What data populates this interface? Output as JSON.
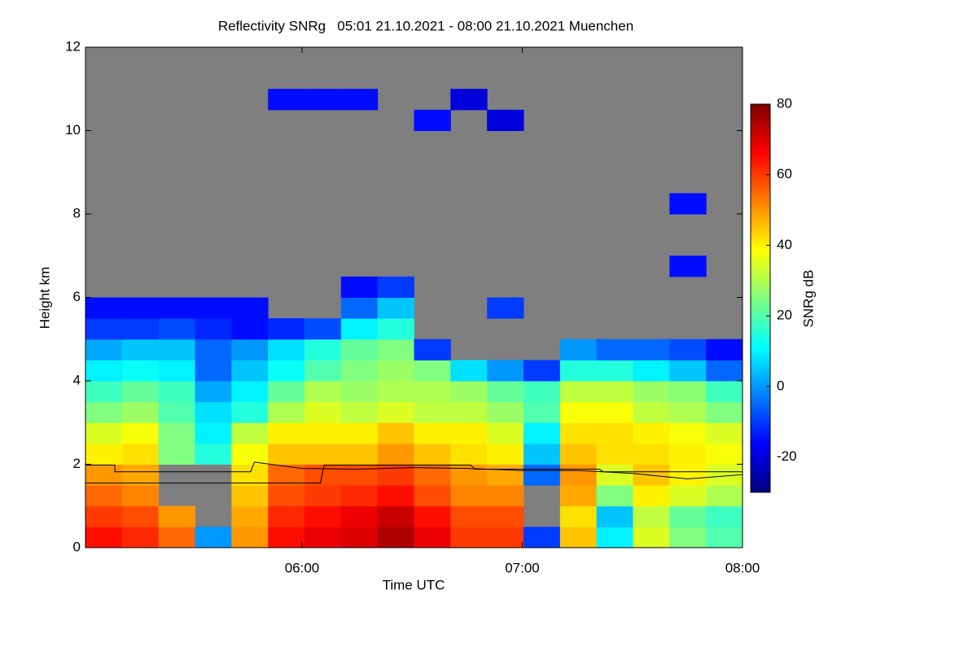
{
  "chart_data": {
    "type": "heatmap",
    "title": "Reflectivity SNRg   05:01 21.10.2021 - 08:00 21.10.2021 Muenchen",
    "x_label": "Time UTC",
    "y_label": "Height km",
    "colorbar_label": "SNRg dB",
    "colormap": "jet",
    "clim": [
      -30,
      80
    ],
    "cticks": [
      80,
      60,
      40,
      20,
      0,
      -20
    ],
    "xlim": [
      301,
      480
    ],
    "xticks": [
      {
        "value": 360,
        "label": "06:00"
      },
      {
        "value": 420,
        "label": "07:00"
      },
      {
        "value": 480,
        "label": "08:00"
      }
    ],
    "ylim": [
      0,
      12
    ],
    "yticks": [
      0,
      2,
      4,
      6,
      8,
      10,
      12
    ],
    "z": [
      [
        65,
        62,
        55,
        0,
        50,
        65,
        68,
        70,
        75,
        68,
        60,
        60,
        -10,
        45,
        10,
        35,
        25,
        20
      ],
      [
        60,
        58,
        50,
        null,
        48,
        62,
        65,
        68,
        72,
        65,
        58,
        58,
        null,
        42,
        5,
        32,
        22,
        18
      ],
      [
        55,
        52,
        null,
        null,
        45,
        58,
        60,
        62,
        65,
        58,
        52,
        52,
        null,
        48,
        25,
        40,
        35,
        30
      ],
      [
        50,
        48,
        null,
        null,
        42,
        55,
        58,
        58,
        60,
        55,
        50,
        48,
        -5,
        50,
        35,
        45,
        40,
        35
      ],
      [
        40,
        42,
        25,
        15,
        38,
        45,
        45,
        45,
        50,
        45,
        42,
        40,
        5,
        45,
        42,
        42,
        40,
        38
      ],
      [
        35,
        38,
        25,
        10,
        32,
        40,
        40,
        40,
        45,
        40,
        40,
        35,
        10,
        42,
        42,
        40,
        38,
        35
      ],
      [
        25,
        28,
        20,
        8,
        15,
        30,
        35,
        32,
        35,
        32,
        32,
        28,
        20,
        38,
        38,
        32,
        30,
        25
      ],
      [
        18,
        22,
        18,
        2,
        10,
        22,
        30,
        28,
        30,
        30,
        28,
        22,
        18,
        32,
        32,
        28,
        26,
        18
      ],
      [
        10,
        12,
        10,
        -5,
        5,
        12,
        20,
        25,
        28,
        25,
        8,
        0,
        -10,
        15,
        15,
        10,
        5,
        -5
      ],
      [
        2,
        5,
        5,
        -5,
        0,
        8,
        15,
        22,
        25,
        -10,
        null,
        null,
        null,
        0,
        -5,
        -5,
        -8,
        -15
      ],
      [
        -10,
        -10,
        -8,
        -12,
        -15,
        -12,
        -8,
        10,
        15,
        null,
        null,
        null,
        null,
        null,
        null,
        null,
        null,
        null
      ],
      [
        -15,
        -15,
        -15,
        -15,
        -15,
        null,
        null,
        -5,
        5,
        null,
        null,
        -10,
        null,
        null,
        null,
        null,
        null,
        null
      ],
      [
        null,
        null,
        null,
        null,
        null,
        null,
        null,
        -15,
        -10,
        null,
        null,
        null,
        null,
        null,
        null,
        null,
        null,
        null
      ],
      [
        null,
        null,
        null,
        null,
        null,
        null,
        null,
        null,
        null,
        null,
        null,
        null,
        null,
        null,
        null,
        null,
        -15,
        null
      ],
      [
        null,
        null,
        null,
        null,
        null,
        null,
        null,
        null,
        null,
        null,
        null,
        null,
        null,
        null,
        null,
        null,
        null,
        null
      ],
      [
        null,
        null,
        null,
        null,
        null,
        null,
        null,
        null,
        null,
        null,
        null,
        null,
        null,
        null,
        null,
        null,
        null,
        null
      ],
      [
        null,
        null,
        null,
        null,
        null,
        null,
        null,
        null,
        null,
        null,
        null,
        null,
        null,
        null,
        null,
        null,
        -15,
        null
      ],
      [
        null,
        null,
        null,
        null,
        null,
        null,
        null,
        null,
        null,
        null,
        null,
        null,
        null,
        null,
        null,
        null,
        null,
        null
      ],
      [
        null,
        null,
        null,
        null,
        null,
        null,
        null,
        null,
        null,
        null,
        null,
        null,
        null,
        null,
        null,
        null,
        null,
        null
      ],
      [
        null,
        null,
        null,
        null,
        null,
        null,
        null,
        null,
        null,
        null,
        null,
        null,
        null,
        null,
        null,
        null,
        null,
        null
      ],
      [
        null,
        null,
        null,
        null,
        null,
        null,
        null,
        null,
        null,
        -15,
        null,
        -20,
        null,
        null,
        null,
        null,
        null,
        null
      ],
      [
        null,
        null,
        null,
        null,
        null,
        -15,
        -15,
        -15,
        null,
        null,
        -20,
        null,
        null,
        null,
        null,
        null,
        null,
        null
      ],
      [
        null,
        null,
        null,
        null,
        null,
        null,
        null,
        null,
        null,
        null,
        null,
        null,
        null,
        null,
        null,
        null,
        null,
        null
      ],
      [
        null,
        null,
        null,
        null,
        null,
        null,
        null,
        null,
        null,
        null,
        null,
        null,
        null,
        null,
        null,
        null,
        null,
        null
      ]
    ],
    "lines": [
      {
        "color": "#000000",
        "x": [
          301,
          309,
          309,
          330,
          346,
          347,
          360,
          375,
          390,
          405,
          420,
          435,
          450,
          465,
          480
        ],
        "y": [
          1.98,
          1.98,
          1.82,
          1.82,
          1.82,
          2.05,
          1.9,
          1.88,
          1.92,
          1.9,
          1.85,
          1.85,
          1.78,
          1.65,
          1.75
        ]
      },
      {
        "color": "#000000",
        "x": [
          301,
          365,
          366,
          406,
          407,
          441,
          442,
          480
        ],
        "y": [
          1.55,
          1.55,
          1.98,
          1.98,
          1.88,
          1.88,
          1.82,
          1.82
        ]
      }
    ]
  }
}
